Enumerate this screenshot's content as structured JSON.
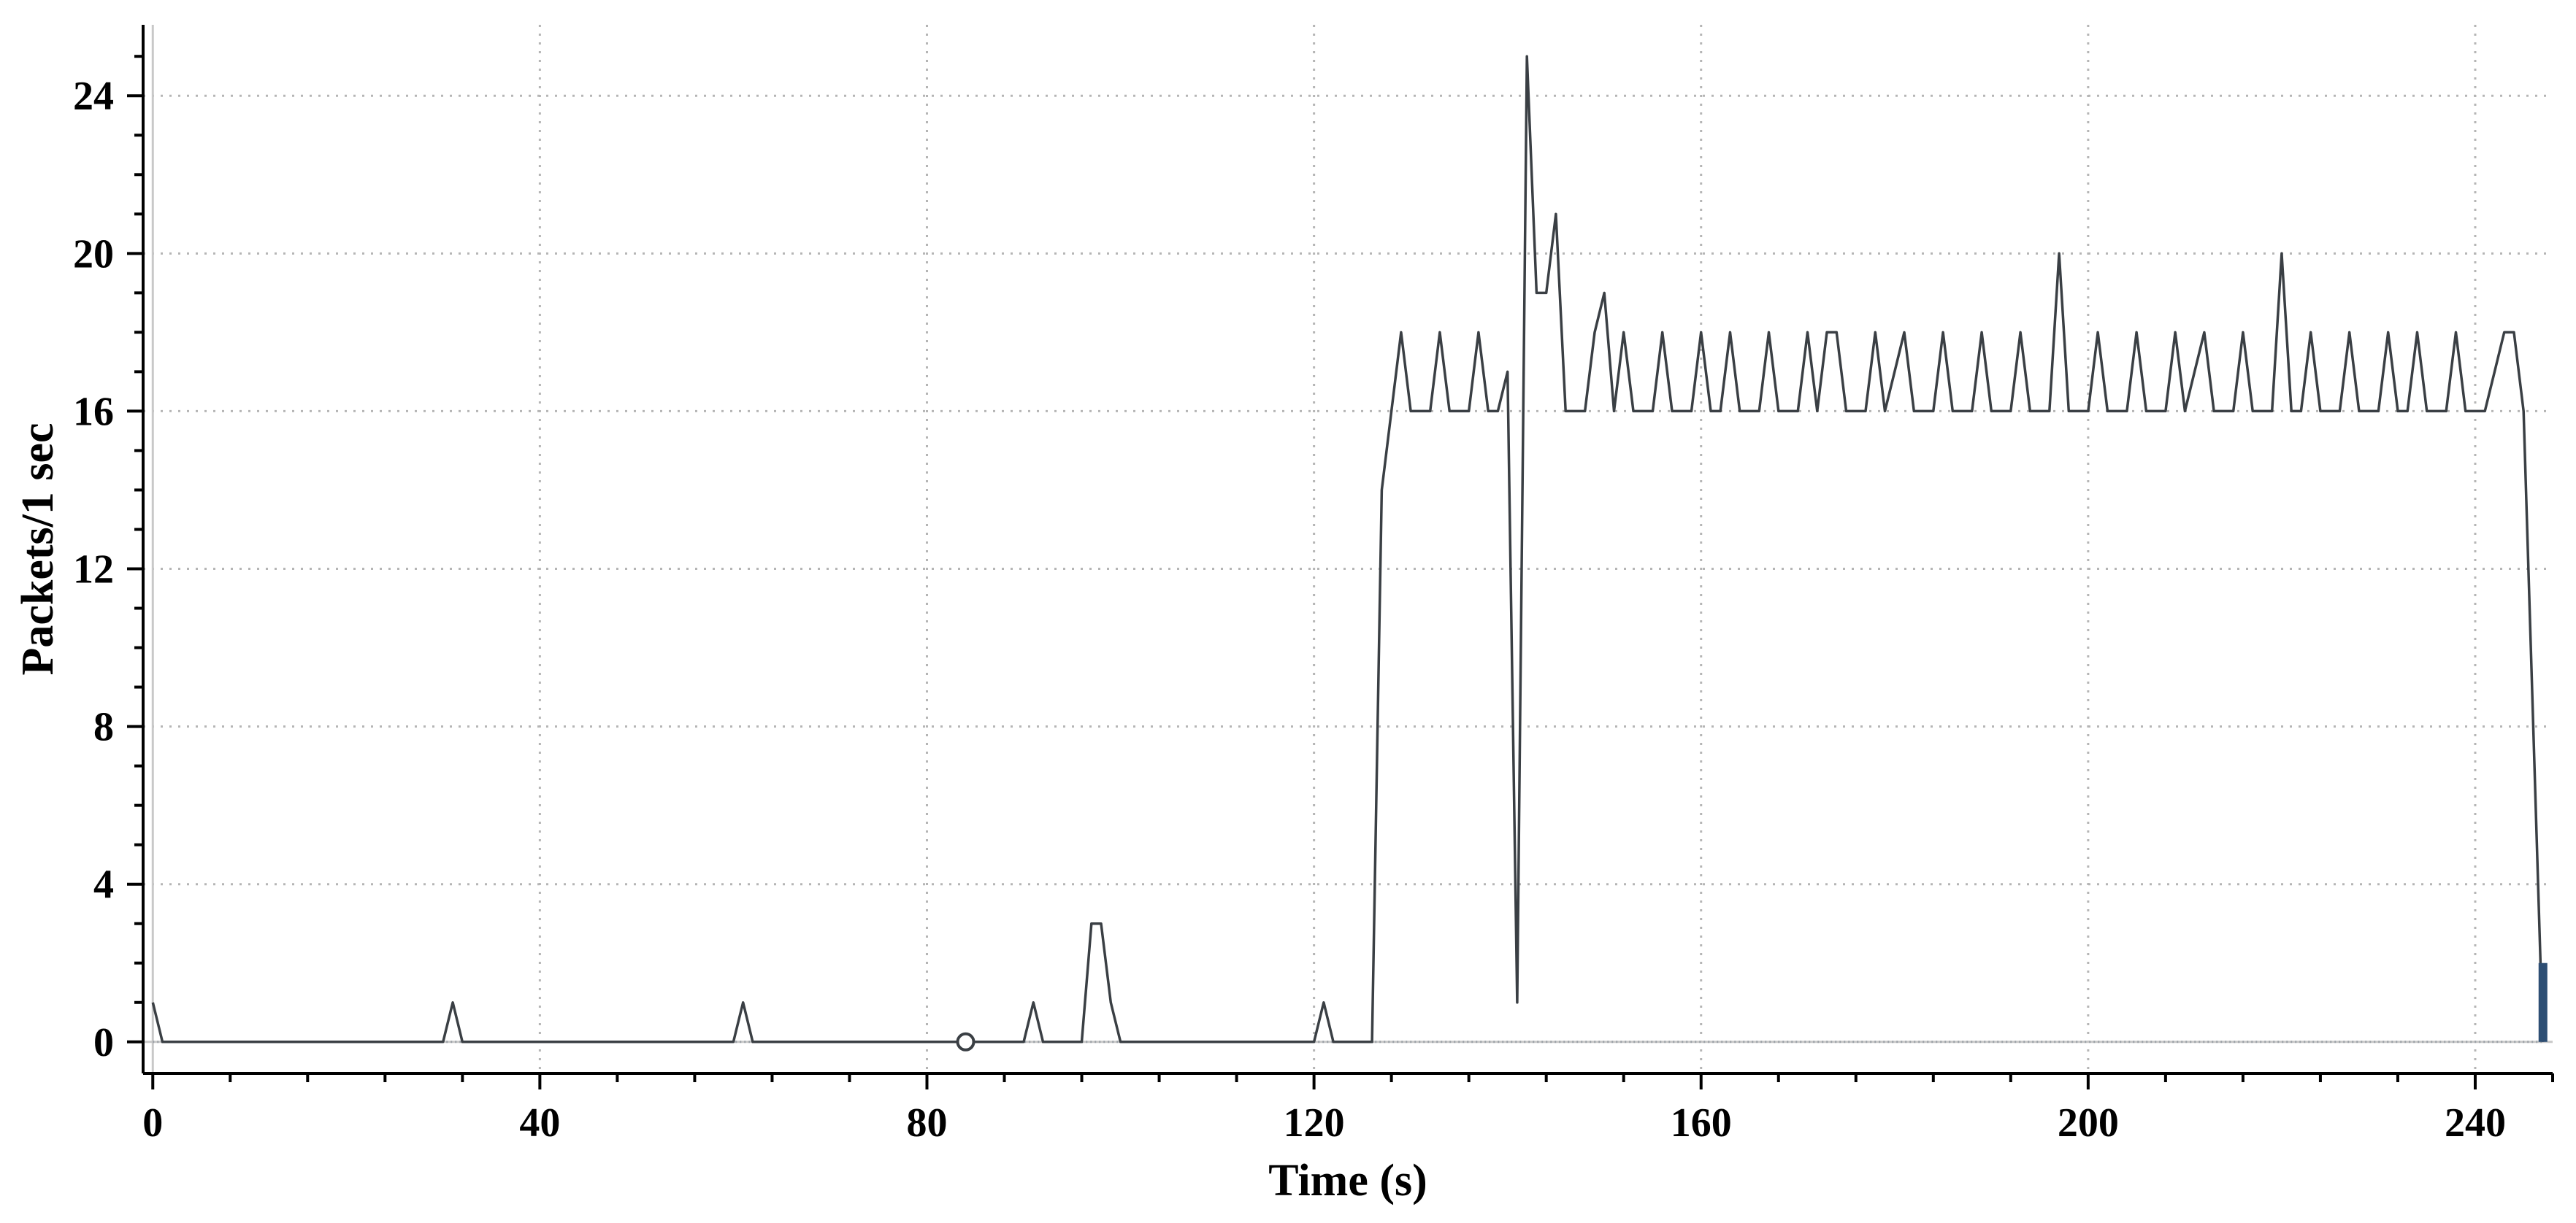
{
  "chart_data": {
    "type": "line",
    "xlabel": "Time (s)",
    "ylabel": "Packets/1 sec",
    "xlim": [
      -1,
      248
    ],
    "ylim": [
      -0.8,
      25.8
    ],
    "x_ticks": [
      0,
      40,
      80,
      120,
      160,
      200,
      240
    ],
    "y_ticks": [
      0,
      4,
      8,
      12,
      16,
      20,
      24
    ],
    "x_tick_labels": [
      "0",
      "40",
      "80",
      "120",
      "160",
      "200",
      "240"
    ],
    "y_tick_labels": [
      "0",
      "4",
      "8",
      "12",
      "16",
      "20",
      "24"
    ],
    "grid": true,
    "series": [
      {
        "color": "#3a3f44",
        "points": [
          [
            0,
            1
          ],
          [
            1,
            0
          ],
          [
            30,
            0
          ],
          [
            31,
            1
          ],
          [
            32,
            0
          ],
          [
            60,
            0
          ],
          [
            61,
            1
          ],
          [
            62,
            0
          ],
          [
            90,
            0
          ],
          [
            91,
            1
          ],
          [
            92,
            0
          ],
          [
            96,
            0
          ],
          [
            97,
            3
          ],
          [
            98,
            3
          ],
          [
            99,
            1
          ],
          [
            100,
            0
          ],
          [
            120,
            0
          ],
          [
            121,
            1
          ],
          [
            122,
            0
          ],
          [
            126,
            0
          ],
          [
            127,
            14
          ],
          [
            129,
            18
          ],
          [
            130,
            16
          ],
          [
            132,
            16
          ],
          [
            133,
            18
          ],
          [
            134,
            16
          ],
          [
            136,
            16
          ],
          [
            137,
            18
          ],
          [
            138,
            16
          ],
          [
            139,
            16
          ],
          [
            140,
            17
          ],
          [
            141,
            1
          ],
          [
            142,
            25
          ],
          [
            143,
            19
          ],
          [
            144,
            19
          ],
          [
            145,
            21
          ],
          [
            146,
            16
          ],
          [
            148,
            16
          ],
          [
            149,
            18
          ],
          [
            150,
            19
          ],
          [
            151,
            16
          ],
          [
            152,
            18
          ],
          [
            153,
            16
          ],
          [
            155,
            16
          ],
          [
            156,
            18
          ],
          [
            157,
            16
          ],
          [
            159,
            16
          ],
          [
            160,
            18
          ],
          [
            161,
            16
          ],
          [
            162,
            16
          ],
          [
            163,
            18
          ],
          [
            164,
            16
          ],
          [
            166,
            16
          ],
          [
            167,
            18
          ],
          [
            168,
            16
          ],
          [
            170,
            16
          ],
          [
            171,
            18
          ],
          [
            172,
            16
          ],
          [
            173,
            18
          ],
          [
            174,
            18
          ],
          [
            175,
            16
          ],
          [
            177,
            16
          ],
          [
            178,
            18
          ],
          [
            179,
            16
          ],
          [
            180,
            17
          ],
          [
            181,
            18
          ],
          [
            182,
            16
          ],
          [
            184,
            16
          ],
          [
            185,
            18
          ],
          [
            186,
            16
          ],
          [
            188,
            16
          ],
          [
            189,
            18
          ],
          [
            190,
            16
          ],
          [
            192,
            16
          ],
          [
            193,
            18
          ],
          [
            194,
            16
          ],
          [
            196,
            16
          ],
          [
            197,
            20
          ],
          [
            198,
            16
          ],
          [
            200,
            16
          ],
          [
            201,
            18
          ],
          [
            202,
            16
          ],
          [
            204,
            16
          ],
          [
            205,
            18
          ],
          [
            206,
            16
          ],
          [
            208,
            16
          ],
          [
            209,
            18
          ],
          [
            210,
            16
          ],
          [
            211,
            17
          ],
          [
            212,
            18
          ],
          [
            213,
            16
          ],
          [
            215,
            16
          ],
          [
            216,
            18
          ],
          [
            217,
            16
          ],
          [
            219,
            16
          ],
          [
            220,
            20
          ],
          [
            221,
            16
          ],
          [
            222,
            16
          ],
          [
            223,
            18
          ],
          [
            224,
            16
          ],
          [
            226,
            16
          ],
          [
            227,
            18
          ],
          [
            228,
            16
          ],
          [
            230,
            16
          ],
          [
            231,
            18
          ],
          [
            232,
            16
          ],
          [
            233,
            16
          ],
          [
            234,
            18
          ],
          [
            235,
            16
          ],
          [
            237,
            16
          ],
          [
            238,
            18
          ],
          [
            239,
            16
          ],
          [
            241,
            16
          ],
          [
            242,
            17
          ],
          [
            243,
            18
          ],
          [
            244,
            18
          ],
          [
            245,
            16
          ],
          [
            247,
            0
          ]
        ]
      }
    ],
    "markers": [
      {
        "shape": "open-circle",
        "x": 84,
        "y": 0,
        "color": "#3a3f44"
      },
      {
        "shape": "bar",
        "x": 247,
        "y": 2,
        "color": "#2d4e73"
      }
    ]
  }
}
